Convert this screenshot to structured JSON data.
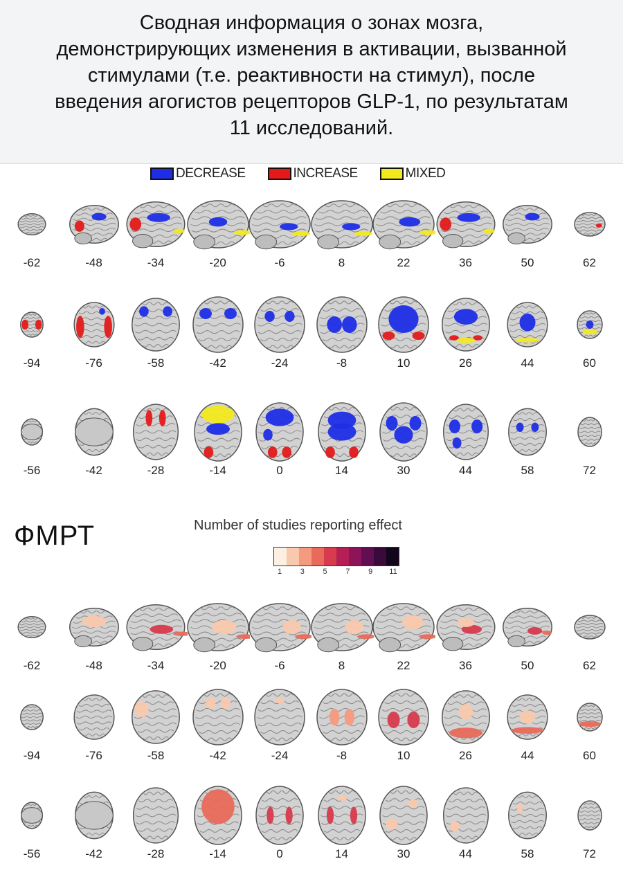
{
  "caption": {
    "lines": [
      "Сводная информация о зонах мозга,",
      "демонстрирующих изменения в активации, вызванной",
      "стимулами (т.е. реактивности на стимул), после",
      "введения агогистов рецепторов GLP-1, по результатам",
      "11 исследований."
    ]
  },
  "legend": {
    "items": [
      {
        "label": "DECREASE",
        "color": "#1f2ee6"
      },
      {
        "label": "INCREASE",
        "color": "#e41a1a"
      },
      {
        "label": "MIXED",
        "color": "#f2ea1d"
      }
    ]
  },
  "section_label": "ФМРТ",
  "scale": {
    "title": "Number of studies reporting effect",
    "ticks": [
      "1",
      "3",
      "5",
      "7",
      "9",
      "11"
    ],
    "colors": [
      "#fdf0e2",
      "#f9c9ad",
      "#f39a7f",
      "#e86a5a",
      "#d73b4e",
      "#b51f55",
      "#8d135a",
      "#620e52",
      "#3a0a3b",
      "#12061a"
    ]
  },
  "panels": [
    {
      "rows": [
        {
          "view": "sagittal",
          "labels": [
            "-62",
            "-48",
            "-34",
            "-20",
            "-6",
            "8",
            "22",
            "36",
            "50",
            "62"
          ]
        },
        {
          "view": "coronal",
          "labels": [
            "-94",
            "-76",
            "-58",
            "-42",
            "-24",
            "-8",
            "10",
            "26",
            "44",
            "60"
          ]
        },
        {
          "view": "axial",
          "labels": [
            "-56",
            "-42",
            "-28",
            "-14",
            "0",
            "14",
            "30",
            "44",
            "58",
            "72"
          ]
        }
      ]
    },
    {
      "rows": [
        {
          "view": "sagittal",
          "labels": [
            "-62",
            "-48",
            "-34",
            "-20",
            "-6",
            "8",
            "22",
            "36",
            "50",
            "62"
          ]
        },
        {
          "view": "coronal",
          "labels": [
            "-94",
            "-76",
            "-58",
            "-42",
            "-24",
            "-8",
            "10",
            "26",
            "44",
            "60"
          ]
        },
        {
          "view": "axial",
          "labels": [
            "-56",
            "-42",
            "-28",
            "-14",
            "0",
            "14",
            "30",
            "44",
            "58",
            "72"
          ]
        }
      ]
    }
  ]
}
